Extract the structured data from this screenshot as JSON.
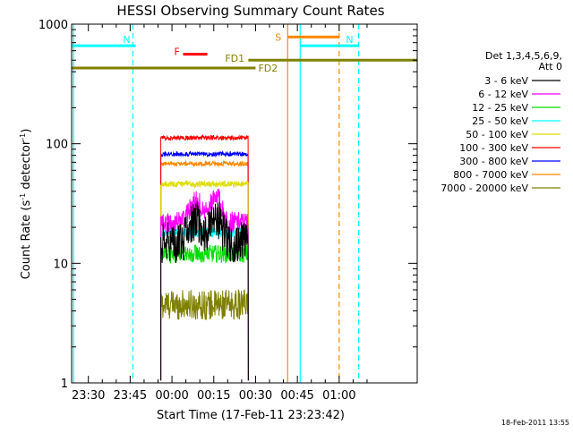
{
  "chart_data": {
    "type": "line",
    "title": "HESSI Observing Summary Count Rates",
    "xlabel": "Start Time (17-Feb-11 23:23:42)",
    "ylabel": "Count Rate (s⁻¹ detector⁻¹)",
    "ylabel_parts": {
      "pre": "Count Rate (s",
      "sup1": "-1",
      "mid": " detector",
      "sup2": "-1",
      "post": ")"
    },
    "yscale": "log",
    "ylim": [
      1,
      1000
    ],
    "xlim_minutes": [
      -19.7,
      104.3
    ],
    "x_tick_labels": [
      "23:30",
      "23:45",
      "00:00",
      "00:15",
      "00:30",
      "00:45",
      "01:00"
    ],
    "x_tick_minutes": [
      -13.7,
      1.3,
      16.3,
      31.3,
      46.3,
      61.3,
      76.3
    ],
    "y_tick_labels": [
      "1",
      "10",
      "100",
      "1000"
    ],
    "y_tick_values": [
      1,
      10,
      100,
      1000
    ],
    "grid": false,
    "legend_position": "right",
    "legend_header": [
      "Det 1,3,4,5,6,9,",
      "Att 0"
    ],
    "series": [
      {
        "name": "3 - 6 keV",
        "color": "#000000",
        "level": 15,
        "noise": 0.35,
        "start_minutes": 12.3,
        "end_minutes": 43.7,
        "profile": "flare"
      },
      {
        "name": "6 - 12 keV",
        "color": "#ff00ff",
        "level": 22,
        "noise": 0.18,
        "start_minutes": 12.3,
        "end_minutes": 43.7,
        "profile": "flare"
      },
      {
        "name": "12 - 25 keV",
        "color": "#00dd00",
        "level": 12,
        "noise": 0.15,
        "start_minutes": 12.3,
        "end_minutes": 43.7,
        "profile": "flat"
      },
      {
        "name": "25 - 50 keV",
        "color": "#00ffff",
        "level": 18,
        "noise": 0.08,
        "start_minutes": 12.3,
        "end_minutes": 43.7,
        "profile": "flat"
      },
      {
        "name": "50 - 100 keV",
        "color": "#dddd00",
        "level": 46,
        "noise": 0.05,
        "start_minutes": 12.3,
        "end_minutes": 43.7,
        "profile": "flat"
      },
      {
        "name": "100 - 300 keV",
        "color": "#ff0000",
        "level": 112,
        "noise": 0.04,
        "start_minutes": 12.3,
        "end_minutes": 43.7,
        "profile": "flat"
      },
      {
        "name": "300 - 800 keV",
        "color": "#0000ff",
        "level": 82,
        "noise": 0.04,
        "start_minutes": 12.3,
        "end_minutes": 43.7,
        "profile": "flat"
      },
      {
        "name": "800 - 7000 keV",
        "color": "#ff8800",
        "level": 68,
        "noise": 0.04,
        "start_minutes": 12.3,
        "end_minutes": 43.7,
        "profile": "flat"
      },
      {
        "name": "7000 - 20000 keV",
        "color": "#808000",
        "level": 4.5,
        "noise": 0.25,
        "start_minutes": 12.3,
        "end_minutes": 43.7,
        "profile": "flat"
      }
    ],
    "annotations": [
      {
        "label": "N",
        "color": "#00ffff",
        "y_value": 660,
        "start_minutes": -19.7,
        "end_minutes": 3.3
      },
      {
        "label": "N",
        "color": "#00ffff",
        "y_value": 660,
        "start_minutes": 62.3,
        "end_minutes": 83.3
      },
      {
        "label": "F",
        "color": "#ff0000",
        "y_value": 560,
        "start_minutes": 20.3,
        "end_minutes": 29.0
      },
      {
        "label": "FD1",
        "color": "#808000",
        "y_value": 500,
        "start_minutes": 43.7,
        "end_minutes": 104.3
      },
      {
        "label": "FD2",
        "color": "#808000",
        "y_value": 430,
        "start_minutes": -19.7,
        "end_minutes": 46.3
      },
      {
        "label": "S",
        "color": "#ff8800",
        "y_value": 780,
        "start_minutes": 57.8,
        "end_minutes": 76.3
      }
    ],
    "vertical_markers": [
      {
        "x_minutes": -19.0,
        "color": "#00ffff",
        "style": "solid"
      },
      {
        "x_minutes": 2.3,
        "color": "#00ffff",
        "style": "dashed"
      },
      {
        "x_minutes": 57.8,
        "color": "#ff8800",
        "style": "solid"
      },
      {
        "x_minutes": 62.3,
        "color": "#00ffff",
        "style": "solid"
      },
      {
        "x_minutes": 76.3,
        "color": "#ff8800",
        "style": "dashed"
      },
      {
        "x_minutes": 83.3,
        "color": "#00ffff",
        "style": "dashed"
      }
    ],
    "footer_text": "18-Feb-2011 13:55"
  }
}
